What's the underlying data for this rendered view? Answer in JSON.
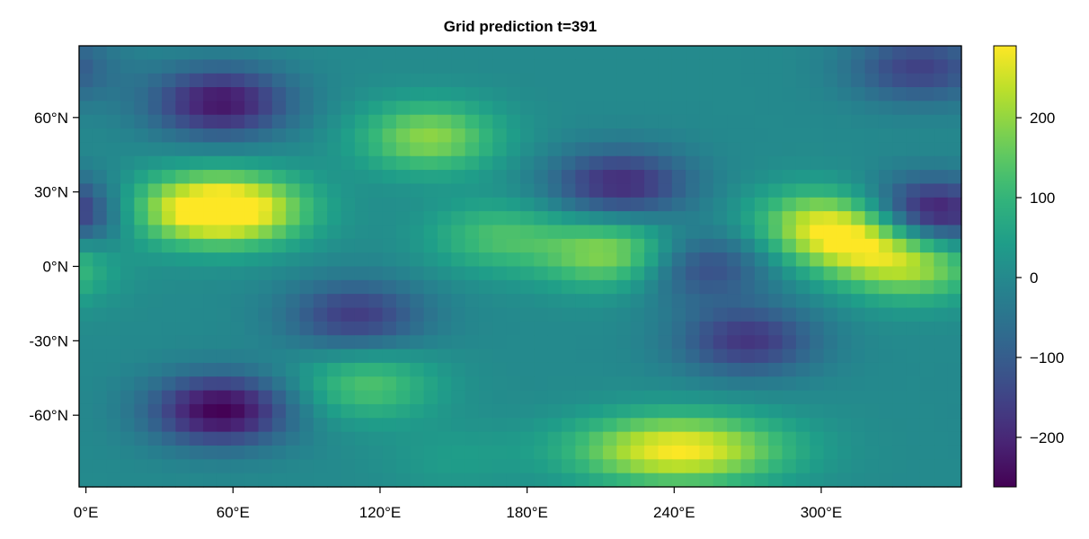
{
  "chart_data": {
    "type": "heatmap",
    "title": "Grid prediction t=391",
    "xlabel": "",
    "ylabel": "",
    "x_ticks": [
      "0°E",
      "60°E",
      "120°E",
      "180°E",
      "240°E",
      "300°E"
    ],
    "x_tick_values": [
      0,
      60,
      120,
      180,
      240,
      300
    ],
    "y_ticks": [
      "60°N",
      "30°N",
      "0°N",
      "-30°N",
      "-60°N"
    ],
    "y_tick_values": [
      60,
      30,
      0,
      -30,
      -60
    ],
    "xlim": [
      -2.8,
      357.2
    ],
    "ylim": [
      -88.9,
      88.9
    ],
    "colorbar": {
      "colormap": "viridis",
      "range": [
        -262,
        290
      ],
      "ticks": [
        200,
        100,
        0,
        -100,
        -200
      ],
      "tick_labels": [
        "200",
        "100",
        "0",
        "−100",
        "−200"
      ]
    },
    "features": [
      {
        "name": "high",
        "lon": 242,
        "lat": -74,
        "value": 290
      },
      {
        "name": "high",
        "lon": 64,
        "lat": 23,
        "value": 255
      },
      {
        "name": "high",
        "lon": 40,
        "lat": 23,
        "value": 195
      },
      {
        "name": "high",
        "lon": 140,
        "lat": 52,
        "value": 195
      },
      {
        "name": "high",
        "lon": 215,
        "lat": 5,
        "value": 205
      },
      {
        "name": "high",
        "lon": 315,
        "lat": 10,
        "value": 195
      },
      {
        "name": "high",
        "lon": 300,
        "lat": 18,
        "value": 185
      },
      {
        "name": "high",
        "lon": 338,
        "lat": 0,
        "value": 190
      },
      {
        "name": "high",
        "lon": 115,
        "lat": -48,
        "value": 135
      },
      {
        "name": "high",
        "lon": 168,
        "lat": 12,
        "value": 125
      },
      {
        "name": "low",
        "lon": 55,
        "lat": -58,
        "value": -262
      },
      {
        "name": "low",
        "lon": 55,
        "lat": 66,
        "value": -230
      },
      {
        "name": "low",
        "lon": 345,
        "lat": 21,
        "value": -258
      },
      {
        "name": "low",
        "lon": 218,
        "lat": 33,
        "value": -195
      },
      {
        "name": "low",
        "lon": 150,
        "lat": -78,
        "value": 40
      },
      {
        "name": "low",
        "lon": 340,
        "lat": 80,
        "value": -155
      },
      {
        "name": "low",
        "lon": 270,
        "lat": -30,
        "value": -175
      },
      {
        "name": "low",
        "lon": 250,
        "lat": 0,
        "value": -150
      },
      {
        "name": "low",
        "lon": 110,
        "lat": -20,
        "value": -165
      }
    ],
    "grid": false,
    "legend": "colorbar-right"
  }
}
